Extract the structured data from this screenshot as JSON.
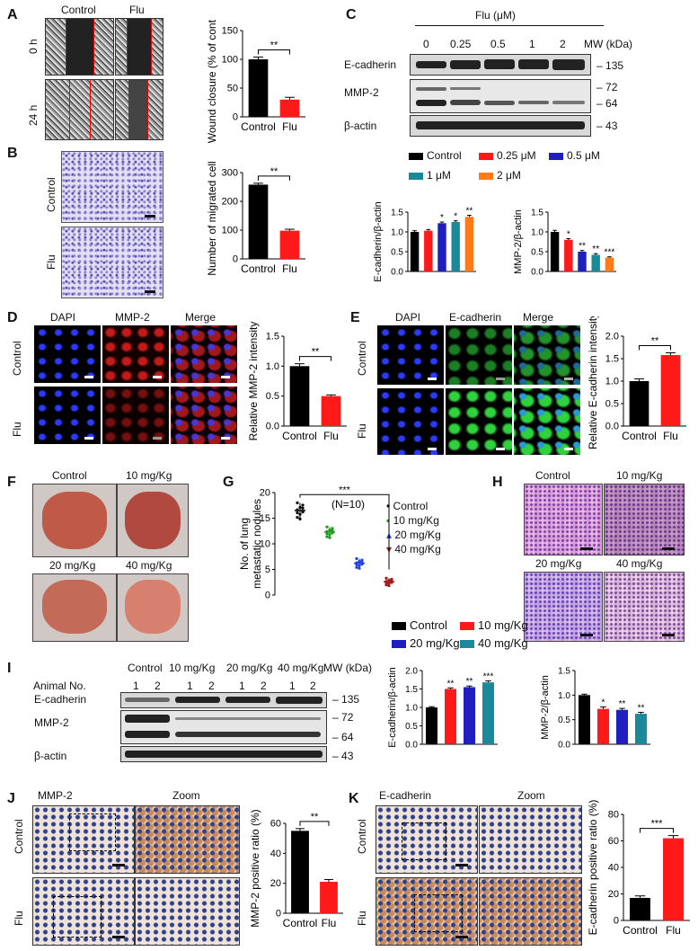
{
  "panels": {
    "A": {
      "label": "A",
      "cols": [
        "Control",
        "Flu"
      ],
      "rows": [
        "0 h",
        "24 h"
      ]
    },
    "B": {
      "label": "B",
      "rows": [
        "Control",
        "Flu"
      ]
    },
    "C": {
      "label": "C",
      "header": "Flu (μM)",
      "concs": [
        "0",
        "0.25",
        "0.5",
        "1",
        "2"
      ],
      "mw_label": "MW (kDa)",
      "proteins": [
        "E-cadherin",
        "MMP-2",
        "β-actin"
      ],
      "mw": [
        "135",
        "72",
        "64",
        "43"
      ],
      "legend": [
        "Control",
        "0.25 μM",
        "0.5 μM",
        "1 μM",
        "2 μM"
      ]
    },
    "D": {
      "label": "D",
      "cols": [
        "DAPI",
        "MMP-2",
        "Merge"
      ],
      "rows": [
        "Control",
        "Flu"
      ]
    },
    "E": {
      "label": "E",
      "cols": [
        "DAPI",
        "E-cadherin",
        "Merge"
      ],
      "rows": [
        "Control",
        "Flu"
      ]
    },
    "F": {
      "label": "F",
      "groups": [
        "Control",
        "10 mg/Kg",
        "20 mg/Kg",
        "40 mg/Kg"
      ]
    },
    "G": {
      "label": "G",
      "legend": [
        "Control",
        "10 mg/Kg",
        "20 mg/Kg",
        "40 mg/Kg"
      ]
    },
    "H": {
      "label": "H",
      "groups": [
        "Control",
        "10 mg/Kg",
        "20 mg/Kg",
        "40 mg/Kg"
      ],
      "legend": [
        "Control",
        "10 mg/Kg",
        "20 mg/Kg",
        "40 mg/Kg"
      ]
    },
    "I": {
      "label": "I",
      "animal_label": "Animal No.",
      "groups": [
        "Control",
        "10 mg/Kg",
        "20 mg/Kg",
        "40 mg/Kg"
      ],
      "animals": [
        "1",
        "2",
        "1",
        "2",
        "1",
        "2",
        "1",
        "2"
      ],
      "mw_label": "MW (kDa)",
      "proteins": [
        "E-cadherin",
        "MMP-2",
        "β-actin"
      ],
      "mw": [
        "135",
        "72",
        "64",
        "43"
      ]
    },
    "J": {
      "label": "J",
      "cols": [
        "MMP-2",
        "Zoom"
      ],
      "rows": [
        "Control",
        "Flu"
      ]
    },
    "K": {
      "label": "K",
      "cols": [
        "E-cadherin",
        "Zoom"
      ],
      "rows": [
        "Control",
        "Flu"
      ]
    }
  },
  "chart_data": [
    {
      "id": "A",
      "type": "bar",
      "categories": [
        "Control",
        "Flu"
      ],
      "values": [
        100,
        30
      ],
      "errors": [
        4,
        4
      ],
      "ylabel": "Wound closure (% of control)",
      "ylim": [
        0,
        150
      ],
      "yticks": [
        0,
        50,
        100,
        150
      ],
      "sig": "**",
      "colors": [
        "#000000",
        "#ff1a1a"
      ]
    },
    {
      "id": "B",
      "type": "bar",
      "categories": [
        "Control",
        "Flu"
      ],
      "values": [
        258,
        98
      ],
      "errors": [
        5,
        5
      ],
      "ylabel": "Number of migrated cells",
      "ylim": [
        0,
        300
      ],
      "yticks": [
        0,
        100,
        200,
        300
      ],
      "sig": "**",
      "colors": [
        "#000000",
        "#ff1a1a"
      ]
    },
    {
      "id": "C1",
      "type": "bar",
      "categories": [
        "Control",
        "0.25 μM",
        "0.5 μM",
        "1 μM",
        "2 μM"
      ],
      "values": [
        1.0,
        1.03,
        1.22,
        1.25,
        1.38
      ],
      "errors": [
        0.03,
        0.03,
        0.03,
        0.03,
        0.04
      ],
      "sigs": [
        "",
        "",
        "*",
        "*",
        "**"
      ],
      "ylabel": "E-cadherin/β-actin",
      "ylim": [
        0,
        1.5
      ],
      "yticks": [
        "0.0",
        "0.5",
        "1.0",
        "1.5"
      ],
      "colors": [
        "#000000",
        "#ff1a1a",
        "#1f1fbf",
        "#1a8a9a",
        "#ff7a1a"
      ]
    },
    {
      "id": "C2",
      "type": "bar",
      "categories": [
        "Control",
        "0.25 μM",
        "0.5 μM",
        "1 μM",
        "2 μM"
      ],
      "values": [
        1.0,
        0.8,
        0.5,
        0.42,
        0.35
      ],
      "errors": [
        0.04,
        0.03,
        0.03,
        0.03,
        0.02
      ],
      "sigs": [
        "",
        "*",
        "**",
        "**",
        "***"
      ],
      "ylabel": "MMP-2/β-actin",
      "ylim": [
        0,
        1.5
      ],
      "yticks": [
        "0.0",
        "0.5",
        "1.0",
        "1.5"
      ],
      "colors": [
        "#000000",
        "#ff1a1a",
        "#1f1fbf",
        "#1a8a9a",
        "#ff7a1a"
      ]
    },
    {
      "id": "D",
      "type": "bar",
      "categories": [
        "Control",
        "Flu"
      ],
      "values": [
        1.0,
        0.5
      ],
      "errors": [
        0.04,
        0.02
      ],
      "ylabel": "Relative MMP-2 intensity",
      "ylim": [
        0,
        1.5
      ],
      "yticks": [
        "0.0",
        "0.5",
        "1.0",
        "1.5"
      ],
      "sig": "**",
      "colors": [
        "#000000",
        "#ff1a1a"
      ]
    },
    {
      "id": "E",
      "type": "bar",
      "categories": [
        "Control",
        "Flu"
      ],
      "values": [
        1.0,
        1.58
      ],
      "errors": [
        0.05,
        0.05
      ],
      "ylabel": "Relative E-cadherin intensity",
      "ylim": [
        0,
        2.0
      ],
      "yticks": [
        "0.0",
        "0.5",
        "1.0",
        "1.5",
        "2.0"
      ],
      "sig": "**",
      "colors": [
        "#000000",
        "#ff1a1a"
      ]
    },
    {
      "id": "G",
      "type": "scatter",
      "ylabel": "No. of lung metastatic nodules",
      "ylim": [
        0,
        20
      ],
      "yticks": [
        0,
        5,
        10,
        15,
        20
      ],
      "series": [
        {
          "name": "Control",
          "mean": 16.5,
          "sd": 1.5,
          "color": "#000000"
        },
        {
          "name": "10 mg/Kg",
          "mean": 12.3,
          "sd": 1.0,
          "color": "#1a9a1a"
        },
        {
          "name": "20 mg/Kg",
          "mean": 6.2,
          "sd": 0.9,
          "color": "#1f3fdf"
        },
        {
          "name": "40 mg/Kg",
          "mean": 2.6,
          "sd": 0.7,
          "color": "#a01a1a"
        }
      ],
      "annotation": "(N=10)",
      "sig": "***"
    },
    {
      "id": "I1",
      "type": "bar",
      "categories": [
        "Control",
        "10 mg/Kg",
        "20 mg/Kg",
        "40 mg/Kg"
      ],
      "values": [
        1.0,
        1.5,
        1.55,
        1.68
      ],
      "errors": [
        0.02,
        0.03,
        0.03,
        0.04
      ],
      "sigs": [
        "",
        "**",
        "**",
        "***"
      ],
      "ylabel": "E-cadherin/β-actin",
      "ylim": [
        0,
        2.0
      ],
      "yticks": [
        "0.0",
        "0.5",
        "1.0",
        "1.5",
        "2.0"
      ],
      "colors": [
        "#000000",
        "#ff1a1a",
        "#1f1fbf",
        "#1a8a9a"
      ]
    },
    {
      "id": "I2",
      "type": "bar",
      "categories": [
        "Control",
        "10 mg/Kg",
        "20 mg/Kg",
        "40 mg/Kg"
      ],
      "values": [
        1.0,
        0.72,
        0.7,
        0.62
      ],
      "errors": [
        0.02,
        0.04,
        0.03,
        0.03
      ],
      "sigs": [
        "",
        "*",
        "**",
        "**"
      ],
      "ylabel": "MMP-2/β-actin",
      "ylim": [
        0,
        1.5
      ],
      "yticks": [
        "0.0",
        "0.5",
        "1.0",
        "1.5"
      ],
      "colors": [
        "#000000",
        "#ff1a1a",
        "#1f1fbf",
        "#1a8a9a"
      ]
    },
    {
      "id": "J",
      "type": "bar",
      "categories": [
        "Control",
        "Flu"
      ],
      "values": [
        55,
        21
      ],
      "errors": [
        1.5,
        1.5
      ],
      "ylabel": "MMP-2 positive ratio (%)",
      "ylim": [
        0,
        60
      ],
      "yticks": [
        0,
        20,
        40,
        60
      ],
      "sig": "**",
      "colors": [
        "#000000",
        "#ff1a1a"
      ]
    },
    {
      "id": "K",
      "type": "bar",
      "categories": [
        "Control",
        "Flu"
      ],
      "values": [
        17,
        62
      ],
      "errors": [
        1.5,
        2
      ],
      "ylabel": "E-cadherin positive ratio (%)",
      "ylim": [
        0,
        80
      ],
      "yticks": [
        0,
        20,
        40,
        60,
        80
      ],
      "sig": "***",
      "colors": [
        "#000000",
        "#ff1a1a"
      ]
    }
  ]
}
